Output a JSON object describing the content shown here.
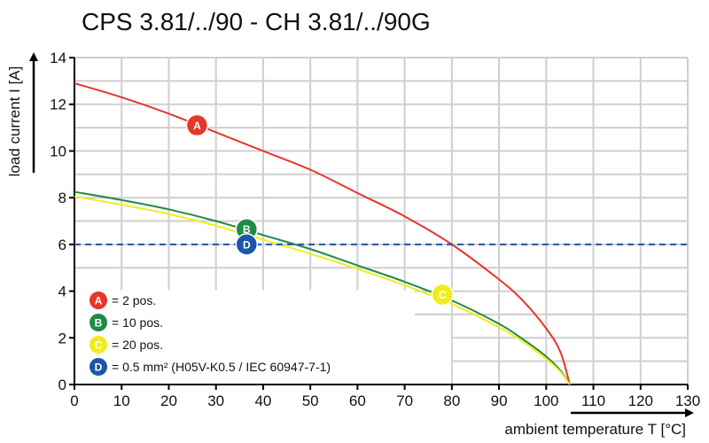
{
  "chart_data": {
    "type": "line",
    "title": "CPS 3.81/../90 - CH 3.81/../90G",
    "xlabel": "ambient temperature T [°C]",
    "ylabel": "load current I [A]",
    "xlim": [
      0,
      130
    ],
    "ylim": [
      0,
      14
    ],
    "xticks": [
      "0",
      "10",
      "20",
      "30",
      "40",
      "50",
      "60",
      "70",
      "80",
      "90",
      "100",
      "110",
      "120",
      "130"
    ],
    "yticks": [
      "0",
      "2",
      "4",
      "6",
      "8",
      "10",
      "12",
      "14"
    ],
    "grid": true,
    "series": [
      {
        "label": "A",
        "name": "= 2 pos.",
        "color": "#e8352a",
        "x": [
          0,
          10,
          20,
          30,
          40,
          50,
          60,
          70,
          80,
          90,
          95,
          100,
          103,
          105
        ],
        "y": [
          12.9,
          12.3,
          11.6,
          10.8,
          10.0,
          9.2,
          8.2,
          7.2,
          6.0,
          4.5,
          3.6,
          2.4,
          1.4,
          0
        ]
      },
      {
        "label": "B",
        "name": "= 10 pos.",
        "color": "#1e8c45",
        "x": [
          0,
          10,
          20,
          30,
          40,
          50,
          60,
          70,
          80,
          90,
          95,
          100,
          103,
          105
        ],
        "y": [
          8.25,
          7.9,
          7.5,
          7.0,
          6.4,
          5.8,
          5.1,
          4.4,
          3.6,
          2.6,
          1.95,
          1.2,
          0.6,
          0
        ]
      },
      {
        "label": "C",
        "name": "= 20 pos.",
        "color": "#f2ec1d",
        "x": [
          0,
          10,
          20,
          30,
          40,
          50,
          60,
          70,
          80,
          90,
          95,
          100,
          103,
          105
        ],
        "y": [
          8.05,
          7.7,
          7.3,
          6.8,
          6.2,
          5.6,
          4.95,
          4.25,
          3.45,
          2.45,
          1.85,
          1.1,
          0.55,
          0
        ]
      },
      {
        "label": "D",
        "name": "= 0.5 mm² (H05V-K0.5 / IEC 60947-7-1)",
        "color": "#1f55a8",
        "dashed": true,
        "x": [
          0,
          130
        ],
        "y": [
          6,
          6
        ]
      }
    ],
    "markers": [
      {
        "label": "A",
        "x": 26,
        "y": 11.1,
        "color": "#e8352a"
      },
      {
        "label": "B",
        "x": 36.5,
        "y": 6.65,
        "color": "#1e8c45"
      },
      {
        "label": "D",
        "x": 36.5,
        "y": 6.0,
        "color": "#1f55a8"
      },
      {
        "label": "C",
        "x": 78,
        "y": 3.85,
        "color": "#f2ec1d"
      }
    ],
    "legend": [
      {
        "label": "A",
        "text": "= 2 pos.",
        "color": "#e8352a"
      },
      {
        "label": "B",
        "text": "= 10 pos.",
        "color": "#1e8c45"
      },
      {
        "label": "C",
        "text": "= 20 pos.",
        "color": "#f2ec1d"
      },
      {
        "label": "D",
        "text": "= 0.5 mm² (H05V-K0.5 / IEC 60947-7-1)",
        "color": "#1f55a8"
      }
    ],
    "legend_position": "bottom-left"
  }
}
